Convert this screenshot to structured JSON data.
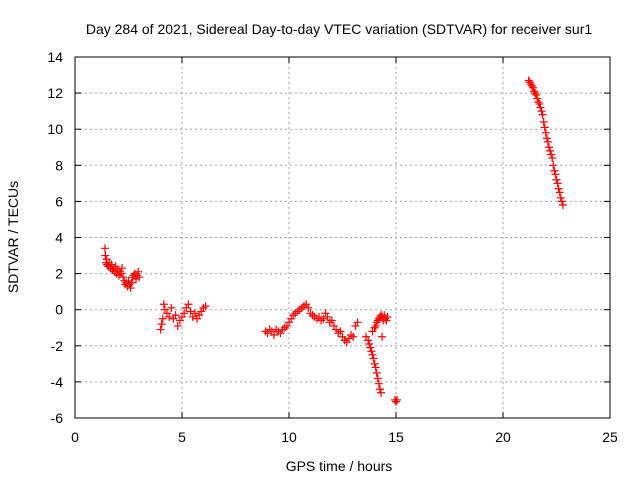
{
  "chart_data": {
    "type": "scatter",
    "title": "Day 284 of 2021, Sidereal Day-to-day VTEC variation (SDTVAR) for receiver sur1",
    "xlabel": "GPS time / hours",
    "ylabel": "SDTVAR / TECUs",
    "xlim": [
      0,
      25
    ],
    "ylim": [
      -6,
      14
    ],
    "xticks": [
      0,
      5,
      10,
      15,
      20,
      25
    ],
    "yticks": [
      -6,
      -4,
      -2,
      0,
      2,
      4,
      6,
      8,
      10,
      12,
      14
    ],
    "xtick_labels": [
      "0",
      "5",
      "10",
      "15",
      "20",
      "25"
    ],
    "ytick_labels": [
      "-6",
      "-4",
      "-2",
      "0",
      "2",
      "4",
      "6",
      "8",
      "10",
      "12",
      "14"
    ],
    "grid": true,
    "marker": "plus",
    "color": "#ff0000",
    "series": [
      {
        "name": "sur1",
        "x": [
          1.4,
          1.42,
          1.45,
          1.48,
          1.5,
          1.55,
          1.6,
          1.65,
          1.7,
          1.75,
          1.8,
          1.85,
          1.9,
          1.95,
          2.0,
          2.05,
          2.1,
          2.15,
          2.2,
          2.25,
          2.3,
          2.35,
          2.4,
          2.45,
          2.5,
          2.55,
          2.6,
          2.65,
          2.7,
          2.75,
          2.8,
          2.85,
          2.9,
          2.95,
          3.0,
          4.0,
          4.05,
          4.1,
          4.15,
          4.2,
          4.3,
          4.4,
          4.5,
          4.6,
          4.7,
          4.8,
          4.9,
          5.0,
          5.1,
          5.2,
          5.3,
          5.4,
          5.5,
          5.6,
          5.7,
          5.8,
          5.9,
          6.0,
          6.1,
          8.9,
          9.0,
          9.1,
          9.2,
          9.3,
          9.4,
          9.5,
          9.6,
          9.7,
          9.8,
          9.9,
          10.0,
          10.1,
          10.2,
          10.3,
          10.4,
          10.5,
          10.6,
          10.7,
          10.8,
          10.9,
          11.0,
          11.1,
          11.2,
          11.3,
          11.4,
          11.5,
          11.6,
          11.7,
          11.8,
          11.9,
          12.0,
          12.1,
          12.2,
          12.3,
          12.4,
          12.5,
          12.6,
          12.7,
          12.8,
          12.9,
          13.0,
          13.1,
          13.2,
          13.6,
          13.7,
          13.75,
          13.8,
          13.85,
          13.9,
          13.95,
          14.0,
          14.05,
          14.1,
          14.15,
          14.2,
          14.25,
          14.3,
          14.35,
          14.4,
          14.45,
          14.5,
          14.55,
          14.6,
          13.9,
          14.0,
          14.05,
          14.1,
          14.15,
          14.2,
          14.25,
          14.3,
          14.35,
          14.4,
          14.95,
          15.0,
          15.05,
          21.2,
          21.25,
          21.3,
          21.35,
          21.4,
          21.45,
          21.5,
          21.55,
          21.6,
          21.65,
          21.7,
          21.75,
          21.8,
          21.85,
          21.9,
          21.95,
          22.0,
          22.05,
          22.1,
          22.15,
          22.2,
          22.25,
          22.3,
          22.35,
          22.4,
          22.45,
          22.5,
          22.55,
          22.6,
          22.65,
          22.7,
          22.75,
          22.8
        ],
        "y": [
          3.4,
          3.0,
          2.6,
          2.8,
          2.5,
          2.4,
          2.6,
          2.3,
          2.5,
          2.2,
          2.3,
          2.1,
          2.4,
          2.0,
          2.2,
          1.9,
          2.1,
          2.0,
          2.3,
          1.8,
          1.6,
          1.4,
          1.5,
          1.3,
          1.6,
          1.4,
          1.2,
          1.5,
          1.8,
          1.9,
          2.0,
          1.7,
          1.9,
          2.1,
          1.8,
          -1.1,
          -0.8,
          -0.5,
          0.3,
          0.0,
          -0.2,
          -0.4,
          0.1,
          -0.5,
          -0.3,
          -0.9,
          -0.6,
          -0.4,
          -0.2,
          0.1,
          0.3,
          -0.1,
          -0.4,
          -0.2,
          -0.5,
          -0.3,
          -0.1,
          0.1,
          0.2,
          -1.2,
          -1.3,
          -1.1,
          -1.2,
          -1.4,
          -1.1,
          -1.2,
          -1.3,
          -1.1,
          -1.0,
          -0.9,
          -0.7,
          -0.5,
          -0.3,
          -0.2,
          -0.1,
          0.0,
          0.1,
          0.2,
          0.3,
          0.1,
          -0.2,
          -0.3,
          -0.4,
          -0.5,
          -0.4,
          -0.6,
          -0.5,
          -0.2,
          -0.4,
          -0.7,
          -0.6,
          -0.9,
          -1.1,
          -1.3,
          -1.2,
          -1.5,
          -1.7,
          -1.8,
          -1.6,
          -1.4,
          -1.5,
          -0.9,
          -0.7,
          -1.5,
          -1.7,
          -1.9,
          -2.1,
          -2.3,
          -2.5,
          -2.7,
          -3.0,
          -3.2,
          -3.5,
          -3.8,
          -4.1,
          -4.4,
          -4.6,
          -1.5,
          -0.5,
          -0.3,
          -0.5,
          -0.6,
          -0.4,
          -1.2,
          -1.0,
          -0.9,
          -0.7,
          -0.6,
          -0.5,
          -0.4,
          -0.3,
          -0.4,
          -0.6,
          -5.0,
          -5.1,
          -5.0,
          12.7,
          12.6,
          12.5,
          12.4,
          12.3,
          12.1,
          12.0,
          11.9,
          11.7,
          11.5,
          11.4,
          11.2,
          11.0,
          10.8,
          10.4,
          10.1,
          9.8,
          9.5,
          9.3,
          9.0,
          8.8,
          8.6,
          8.4,
          8.0,
          7.7,
          7.5,
          7.2,
          7.0,
          6.7,
          6.5,
          6.2,
          6.0,
          5.8
        ]
      }
    ]
  }
}
